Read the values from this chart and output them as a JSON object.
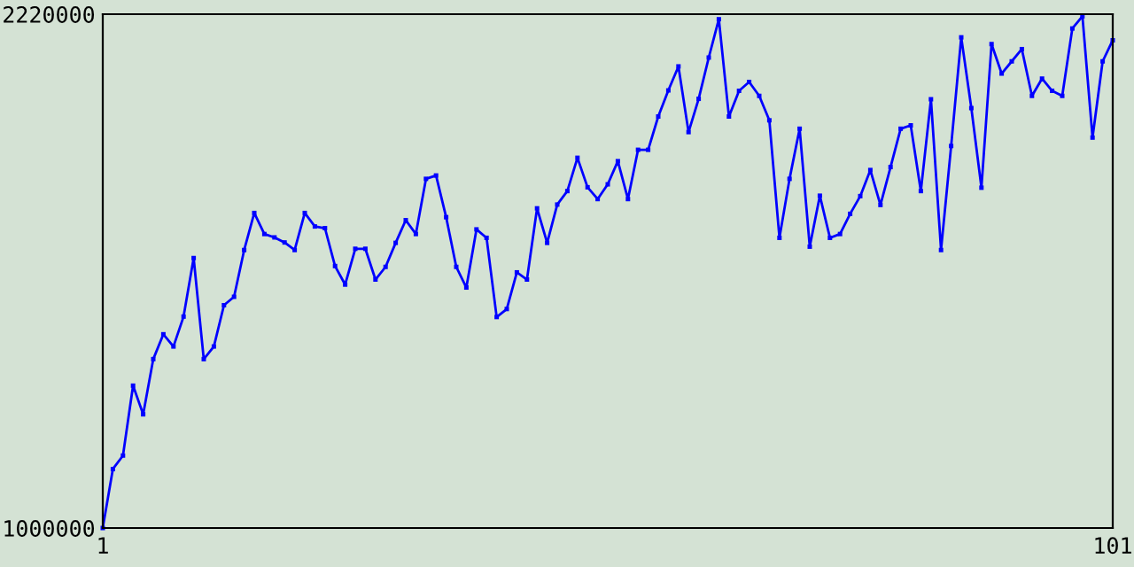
{
  "chart_data": {
    "type": "line",
    "marker": "square",
    "line_style": "solid",
    "grid": false,
    "legend": false,
    "x": [
      1,
      2,
      3,
      4,
      5,
      6,
      7,
      8,
      9,
      10,
      11,
      12,
      13,
      14,
      15,
      16,
      17,
      18,
      19,
      20,
      21,
      22,
      23,
      24,
      25,
      26,
      27,
      28,
      29,
      30,
      31,
      32,
      33,
      34,
      35,
      36,
      37,
      38,
      39,
      40,
      41,
      42,
      43,
      44,
      45,
      46,
      47,
      48,
      49,
      50,
      51,
      52,
      53,
      54,
      55,
      56,
      57,
      58,
      59,
      60,
      61,
      62,
      63,
      64,
      65,
      66,
      67,
      68,
      69,
      70,
      71,
      72,
      73,
      74,
      75,
      76,
      77,
      78,
      79,
      80,
      81,
      82,
      83,
      84,
      85,
      86,
      87,
      88,
      89,
      90,
      91,
      92,
      93,
      94,
      95,
      96,
      97,
      98,
      99,
      100,
      101
    ],
    "series": [
      {
        "color": "#0000ff",
        "values": [
          1000000,
          1140000,
          1172000,
          1338000,
          1270000,
          1401000,
          1460000,
          1431000,
          1502000,
          1641000,
          1401000,
          1431000,
          1529000,
          1549000,
          1660000,
          1748000,
          1698000,
          1690000,
          1678000,
          1660000,
          1748000,
          1716000,
          1712000,
          1622000,
          1578000,
          1663000,
          1663000,
          1590000,
          1620000,
          1677000,
          1731000,
          1698000,
          1829000,
          1837000,
          1738000,
          1620000,
          1571000,
          1709000,
          1689000,
          1501000,
          1520000,
          1607000,
          1590000,
          1759000,
          1677000,
          1768000,
          1800000,
          1879000,
          1809000,
          1781000,
          1816000,
          1871000,
          1781000,
          1898000,
          1898000,
          1977000,
          2039000,
          2096000,
          1940000,
          2019000,
          2117000,
          2208000,
          1977000,
          2038000,
          2059000,
          2026000,
          1968000,
          1689000,
          1829000,
          1948000,
          1668000,
          1789000,
          1689000,
          1698000,
          1746000,
          1788000,
          1850000,
          1767000,
          1857000,
          1948000,
          1956000,
          1800000,
          2018000,
          1660000,
          1907000,
          2165000,
          1997000,
          1808000,
          2149000,
          2079000,
          2108000,
          2137000,
          2026000,
          2067000,
          2038000,
          2026000,
          2186000,
          2215000,
          1927000,
          2108000,
          2158000
        ]
      }
    ],
    "xlim": [
      1,
      101
    ],
    "ylim": [
      1000000,
      2220000
    ],
    "xticks": [
      1,
      101
    ],
    "yticks": [
      1000000,
      2220000
    ]
  }
}
